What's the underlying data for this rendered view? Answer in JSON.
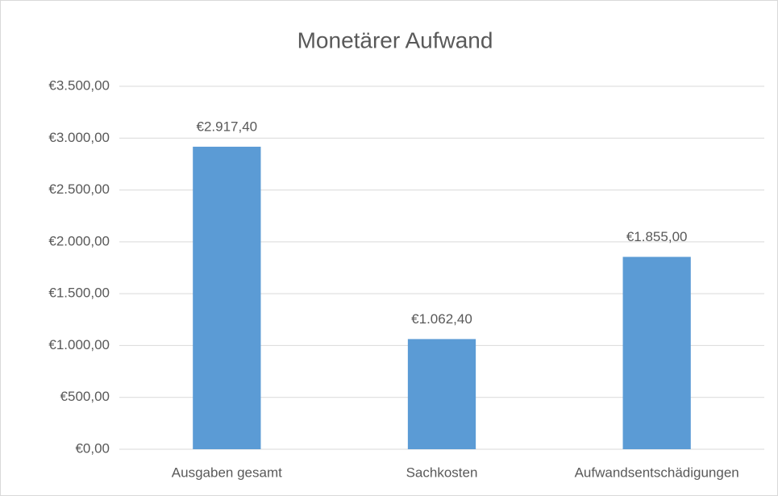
{
  "chart_data": {
    "type": "bar",
    "title": "Monetärer Aufwand",
    "categories": [
      "Ausgaben gesamt",
      "Sachkosten",
      "Aufwandsentschädigungen"
    ],
    "values": [
      2917.4,
      1062.4,
      1855
    ],
    "value_labels": [
      "€2.917,40",
      "€1.062,40",
      "€1.855,00"
    ],
    "color": "#5b9bd5",
    "ylim": [
      0,
      3500
    ],
    "yticks": [
      {
        "value": 0,
        "label": "€0,00"
      },
      {
        "value": 500,
        "label": "€500,00"
      },
      {
        "value": 1000,
        "label": "€1.000,00"
      },
      {
        "value": 1500,
        "label": "€1.500,00"
      },
      {
        "value": 2000,
        "label": "€2.000,00"
      },
      {
        "value": 2500,
        "label": "€2.500,00"
      },
      {
        "value": 3000,
        "label": "€3.000,00"
      },
      {
        "value": 3500,
        "label": "€3.500,00"
      }
    ],
    "grid": true
  }
}
